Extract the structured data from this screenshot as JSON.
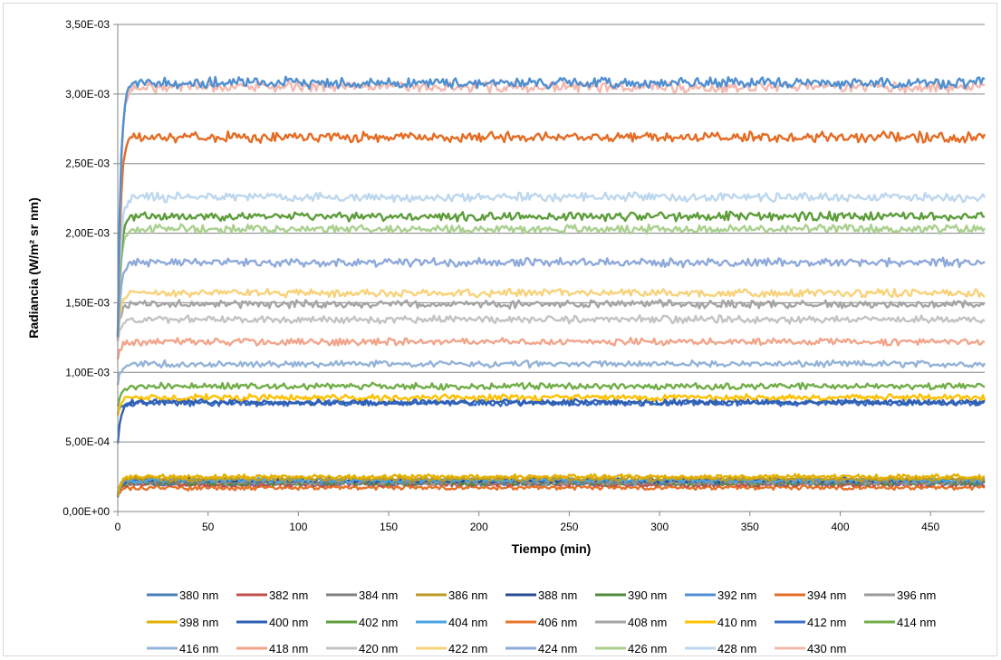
{
  "chart_data": {
    "type": "line",
    "title": "",
    "xlabel": "Tiempo (min)",
    "ylabel": "Radiancia (W/m² sr nm)",
    "xlim": [
      0,
      480
    ],
    "ylim": [
      0,
      0.0035
    ],
    "x_ticks": [
      0,
      50,
      100,
      150,
      200,
      250,
      300,
      350,
      400,
      450
    ],
    "x_tick_labels": [
      "0",
      "50",
      "100",
      "150",
      "200",
      "250",
      "300",
      "350",
      "400",
      "450"
    ],
    "y_ticks": [
      0,
      0.0005,
      0.001,
      0.0015,
      0.002,
      0.0025,
      0.003,
      0.0035
    ],
    "y_tick_labels": [
      "0,00E+00",
      "5,00E-04",
      "1,00E-03",
      "1,50E-03",
      "2,00E-03",
      "2,50E-03",
      "3,00E-03",
      "3,50E-03"
    ],
    "grid": "horizontal",
    "legend_position": "bottom",
    "x_sampling_step": 1,
    "series": [
      {
        "name": "380 nm",
        "color": "#4a7eb8",
        "start": 0.00012,
        "plateau": 0.000205
      },
      {
        "name": "382 nm",
        "color": "#c0504d",
        "start": 0.00012,
        "plateau": 0.000195
      },
      {
        "name": "384 nm",
        "color": "#7f7f7f",
        "start": 0.00011,
        "plateau": 0.000215
      },
      {
        "name": "386 nm",
        "color": "#bd9a24",
        "start": 0.00012,
        "plateau": 0.000235
      },
      {
        "name": "388 nm",
        "color": "#264c8f",
        "start": 0.00012,
        "plateau": 0.000225
      },
      {
        "name": "390 nm",
        "color": "#4f8a3c",
        "start": 0.00012,
        "plateau": 0.000205
      },
      {
        "name": "392 nm",
        "color": "#4f8fd0",
        "start": 0.00125,
        "plateau": 0.00308
      },
      {
        "name": "394 nm",
        "color": "#e46c24",
        "start": 0.00125,
        "plateau": 0.00269
      },
      {
        "name": "396 nm",
        "color": "#9a9a9a",
        "start": 0.00012,
        "plateau": 0.00021
      },
      {
        "name": "398 nm",
        "color": "#e3b000",
        "start": 0.00012,
        "plateau": 0.00025
      },
      {
        "name": "400 nm",
        "color": "#2f5fb3",
        "start": 0.00048,
        "plateau": 0.000785
      },
      {
        "name": "402 nm",
        "color": "#5c9d3a",
        "start": 0.00123,
        "plateau": 0.00212
      },
      {
        "name": "404 nm",
        "color": "#4aa3e0",
        "start": 0.00012,
        "plateau": 0.000225
      },
      {
        "name": "406 nm",
        "color": "#e8742a",
        "start": 0.00012,
        "plateau": 0.00017
      },
      {
        "name": "408 nm",
        "color": "#a5a5a5",
        "start": 0.00125,
        "plateau": 0.00149
      },
      {
        "name": "410 nm",
        "color": "#ffc000",
        "start": 0.0007,
        "plateau": 0.00082
      },
      {
        "name": "412 nm",
        "color": "#3a6fc4",
        "start": 0.0007,
        "plateau": 0.00078
      },
      {
        "name": "414 nm",
        "color": "#70ad47",
        "start": 0.00075,
        "plateau": 0.0009
      },
      {
        "name": "416 nm",
        "color": "#93b3d8",
        "start": 0.0009,
        "plateau": 0.00106
      },
      {
        "name": "418 nm",
        "color": "#f2a48a",
        "start": 0.0011,
        "plateau": 0.00122
      },
      {
        "name": "420 nm",
        "color": "#c3c3c3",
        "start": 0.00123,
        "plateau": 0.00138
      },
      {
        "name": "422 nm",
        "color": "#f8d27a",
        "start": 0.00125,
        "plateau": 0.00157
      },
      {
        "name": "424 nm",
        "color": "#8ea9db",
        "start": 0.00125,
        "plateau": 0.00179
      },
      {
        "name": "426 nm",
        "color": "#a9d08e",
        "start": 0.00125,
        "plateau": 0.00203
      },
      {
        "name": "428 nm",
        "color": "#bdd7ee",
        "start": 0.00125,
        "plateau": 0.00226
      },
      {
        "name": "430 nm",
        "color": "#f4b8ae",
        "start": 0.00125,
        "plateau": 0.00305
      }
    ]
  }
}
